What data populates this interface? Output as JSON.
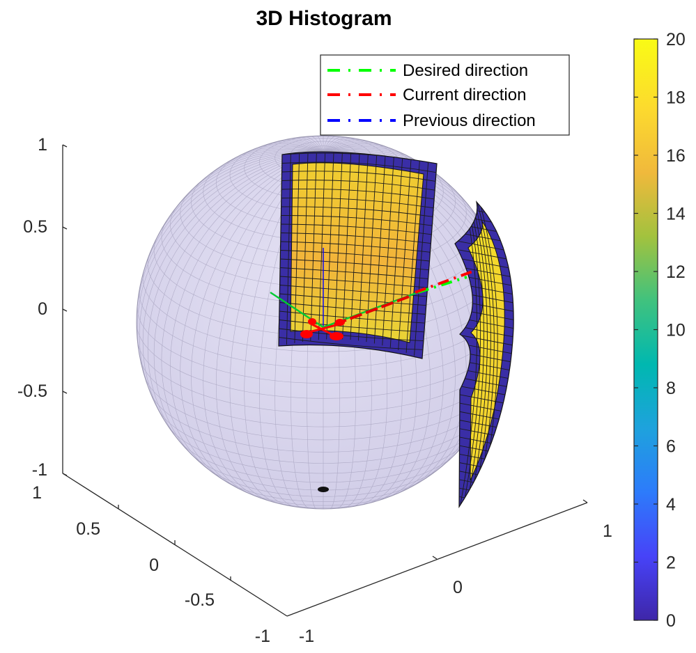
{
  "chart_data": {
    "type": "surface3d",
    "title": "3D Histogram",
    "axes": {
      "z_ticks": [
        "1",
        "0.5",
        "0",
        "-0.5",
        "-1"
      ],
      "y_ticks": [
        "1",
        "0.5",
        "0",
        "-0.5",
        "-1"
      ],
      "x_ticks": [
        "-1",
        "0",
        "1"
      ],
      "xlim": [
        -1,
        1
      ],
      "ylim": [
        -1,
        1
      ],
      "zlim": [
        -1,
        1
      ],
      "grid": false
    },
    "sphere": {
      "radius": 1,
      "color": "#d9d6ee"
    },
    "histogram_patches": [
      {
        "name": "front patch",
        "value_range": [
          0,
          17
        ]
      },
      {
        "name": "right patch",
        "value_range": [
          0,
          20
        ]
      }
    ],
    "legend": {
      "location": "top-right",
      "entries": [
        {
          "label": "Desired direction",
          "color": "#00ff00",
          "style": "dash-dot"
        },
        {
          "label": "Current direction",
          "color": "#ff0000",
          "style": "dash-dot"
        },
        {
          "label": "Previous direction",
          "color": "#0000ff",
          "style": "dash-dot"
        }
      ]
    },
    "colorbar": {
      "range": [
        0,
        20
      ],
      "ticks": [
        "20",
        "18",
        "16",
        "14",
        "12",
        "10",
        "8",
        "6",
        "4",
        "2",
        "0"
      ],
      "colormap": "parula",
      "stops": [
        "#3e26a8",
        "#4743f8",
        "#2d7bfb",
        "#1ea2dd",
        "#00b8b0",
        "#40c27e",
        "#a2c23e",
        "#f0b93c",
        "#fcda2e",
        "#f9fb15"
      ]
    }
  }
}
